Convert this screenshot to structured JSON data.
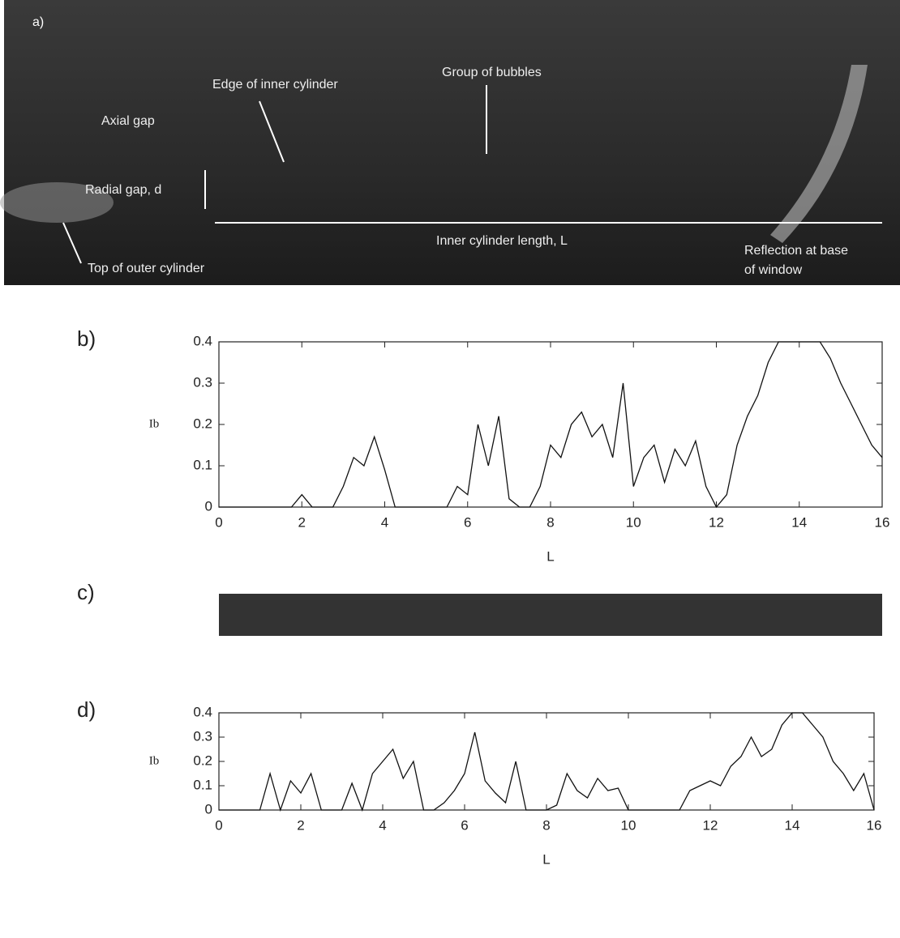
{
  "panels": [
    "a)",
    "b)",
    "c)",
    "d)"
  ],
  "photo": {
    "annotations": [
      "Axial gap",
      "Edge of inner cylinder",
      "Group of bubbles",
      "Radial gap, d",
      "Inner cylinder length, L",
      "Reflection at base",
      "of window",
      "Top of outer cylinder"
    ]
  },
  "chart_data": [
    {
      "type": "line",
      "xlabel": "L",
      "ylabel": "Ib",
      "color": "#111111",
      "x": [
        0,
        0.25,
        0.5,
        0.75,
        1,
        1.25,
        1.5,
        1.75,
        2,
        2.25,
        2.5,
        2.75,
        3,
        3.25,
        3.5,
        3.75,
        4,
        4.25,
        4.5,
        4.75,
        5,
        5.25,
        5.5,
        5.75,
        6,
        6.25,
        6.5,
        6.75,
        7,
        7.25,
        7.5,
        7.75,
        8,
        8.25,
        8.5,
        8.75,
        9,
        9.25,
        9.5,
        9.75,
        10,
        10.25,
        10.5,
        10.75,
        11,
        11.25,
        11.5,
        11.75,
        12,
        12.25,
        12.5,
        12.75,
        13,
        13.25,
        13.5,
        13.75,
        14,
        14.25,
        14.5,
        14.75,
        15,
        15.25,
        15.5,
        15.75,
        16
      ],
      "values": [
        0,
        0,
        0,
        0,
        0,
        0,
        0,
        0,
        0.03,
        0,
        0,
        0,
        0.05,
        0.12,
        0.1,
        0.17,
        0.09,
        0,
        0,
        0,
        0,
        0,
        0,
        0.05,
        0.03,
        0.2,
        0.1,
        0.22,
        0.02,
        0,
        0,
        0.05,
        0.15,
        0.12,
        0.2,
        0.23,
        0.17,
        0.2,
        0.12,
        0.3,
        0.05,
        0.12,
        0.15,
        0.06,
        0.14,
        0.1,
        0.16,
        0.05,
        0,
        0.03,
        0.15,
        0.22,
        0.27,
        0.35,
        0.4,
        0.4,
        0.4,
        0.4,
        0.4,
        0.36,
        0.3,
        0.25,
        0.2,
        0.15,
        0.12
      ],
      "xlim": [
        0,
        16
      ],
      "ylim": [
        0,
        0.4
      ],
      "xticks": [
        0,
        2,
        4,
        6,
        8,
        10,
        12,
        14,
        16
      ],
      "yticks": [
        0,
        0.1,
        0.2,
        0.3,
        0.4
      ]
    },
    {
      "type": "line",
      "xlabel": "L",
      "ylabel": "Ib",
      "color": "#111111",
      "x": [
        0,
        0.25,
        0.5,
        0.75,
        1,
        1.25,
        1.5,
        1.75,
        2,
        2.25,
        2.5,
        2.75,
        3,
        3.25,
        3.5,
        3.75,
        4,
        4.25,
        4.5,
        4.75,
        5,
        5.25,
        5.5,
        5.75,
        6,
        6.25,
        6.5,
        6.75,
        7,
        7.25,
        7.5,
        7.75,
        8,
        8.25,
        8.5,
        8.75,
        9,
        9.25,
        9.5,
        9.75,
        10,
        10.25,
        10.5,
        10.75,
        11,
        11.25,
        11.5,
        11.75,
        12,
        12.25,
        12.5,
        12.75,
        13,
        13.25,
        13.5,
        13.75,
        14,
        14.25,
        14.5,
        14.75,
        15,
        15.25,
        15.5,
        15.75,
        16
      ],
      "values": [
        0,
        0,
        0,
        0,
        0,
        0.15,
        0,
        0.12,
        0.07,
        0.15,
        0,
        0,
        0,
        0.11,
        0,
        0.15,
        0.2,
        0.25,
        0.13,
        0.2,
        0,
        0,
        0.03,
        0.08,
        0.15,
        0.32,
        0.12,
        0.07,
        0.03,
        0.2,
        0,
        0,
        0,
        0.02,
        0.15,
        0.08,
        0.05,
        0.13,
        0.08,
        0.09,
        0,
        0,
        0,
        0,
        0,
        0,
        0.08,
        0.1,
        0.12,
        0.1,
        0.18,
        0.22,
        0.3,
        0.22,
        0.25,
        0.35,
        0.4,
        0.4,
        0.35,
        0.3,
        0.2,
        0.15,
        0.08,
        0.15,
        0
      ],
      "xlim": [
        0,
        16
      ],
      "ylim": [
        0,
        0.4
      ],
      "xticks": [
        0,
        2,
        4,
        6,
        8,
        10,
        12,
        14,
        16
      ],
      "yticks": [
        0,
        0.1,
        0.2,
        0.3,
        0.4
      ]
    }
  ]
}
